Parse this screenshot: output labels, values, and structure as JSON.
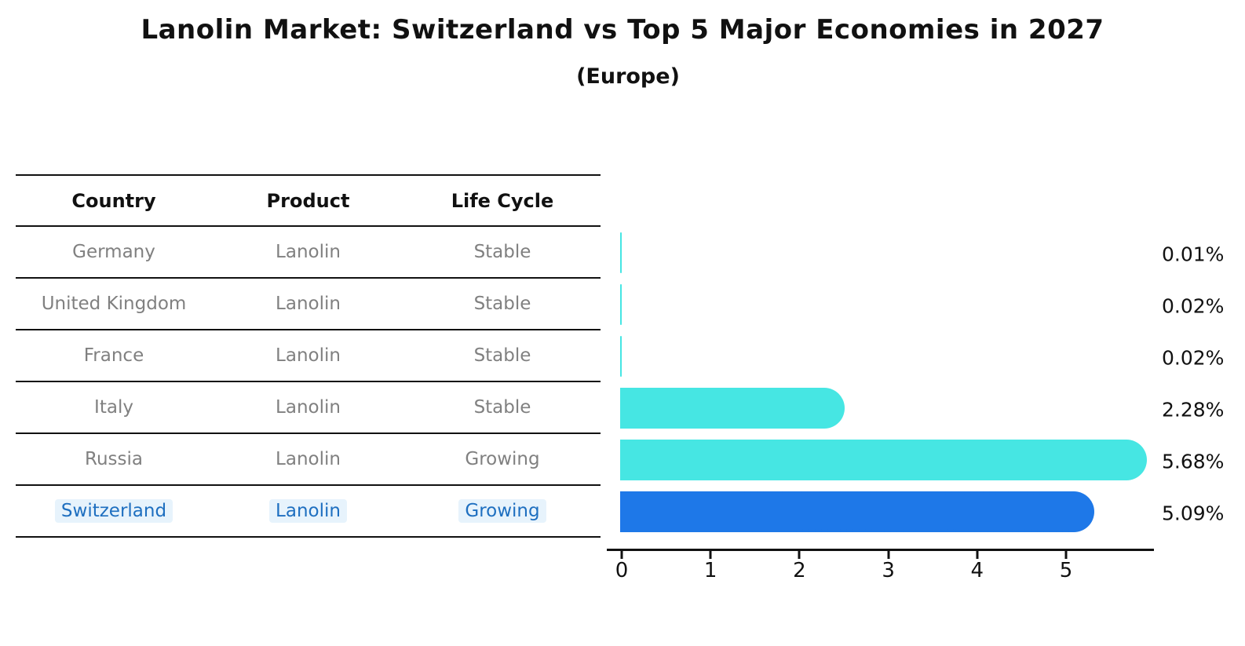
{
  "title": "Lanolin Market: Switzerland vs Top 5 Major Economies in 2027",
  "subtitle": "(Europe)",
  "table": {
    "headers": [
      "Country",
      "Product",
      "Life Cycle"
    ],
    "rows": [
      {
        "country": "Germany",
        "product": "Lanolin",
        "life_cycle": "Stable",
        "highlight": false
      },
      {
        "country": "United Kingdom",
        "product": "Lanolin",
        "life_cycle": "Stable",
        "highlight": false
      },
      {
        "country": "France",
        "product": "Lanolin",
        "life_cycle": "Stable",
        "highlight": false
      },
      {
        "country": "Italy",
        "product": "Lanolin",
        "life_cycle": "Stable",
        "highlight": false
      },
      {
        "country": "Russia",
        "product": "Lanolin",
        "life_cycle": "Growing",
        "highlight": false
      },
      {
        "country": "Switzerland",
        "product": "Lanolin",
        "life_cycle": "Growing",
        "highlight": true
      }
    ]
  },
  "chart_data": {
    "type": "bar",
    "orientation": "horizontal",
    "title": "Lanolin Market: Switzerland vs Top 5 Major Economies in 2027",
    "subtitle": "(Europe)",
    "categories": [
      "Germany",
      "United Kingdom",
      "France",
      "Italy",
      "Russia",
      "Switzerland"
    ],
    "values": [
      0.01,
      0.02,
      0.02,
      2.28,
      5.68,
      5.09
    ],
    "value_labels": [
      "0.01%",
      "0.02%",
      "0.02%",
      "2.28%",
      "5.68%",
      "5.09%"
    ],
    "highlight_index": 5,
    "xlabel": "",
    "ylabel": "",
    "xlim": [
      0,
      6
    ],
    "x_ticks": [
      0,
      1,
      2,
      3,
      4,
      5
    ],
    "grid": false,
    "legend": false,
    "bar_color": "#46E6E3",
    "highlight_bar_color": "#1E78E8",
    "highlight_text_color": "#1E6FC0",
    "row_text_color": "#808080",
    "label_color": "#111111"
  }
}
